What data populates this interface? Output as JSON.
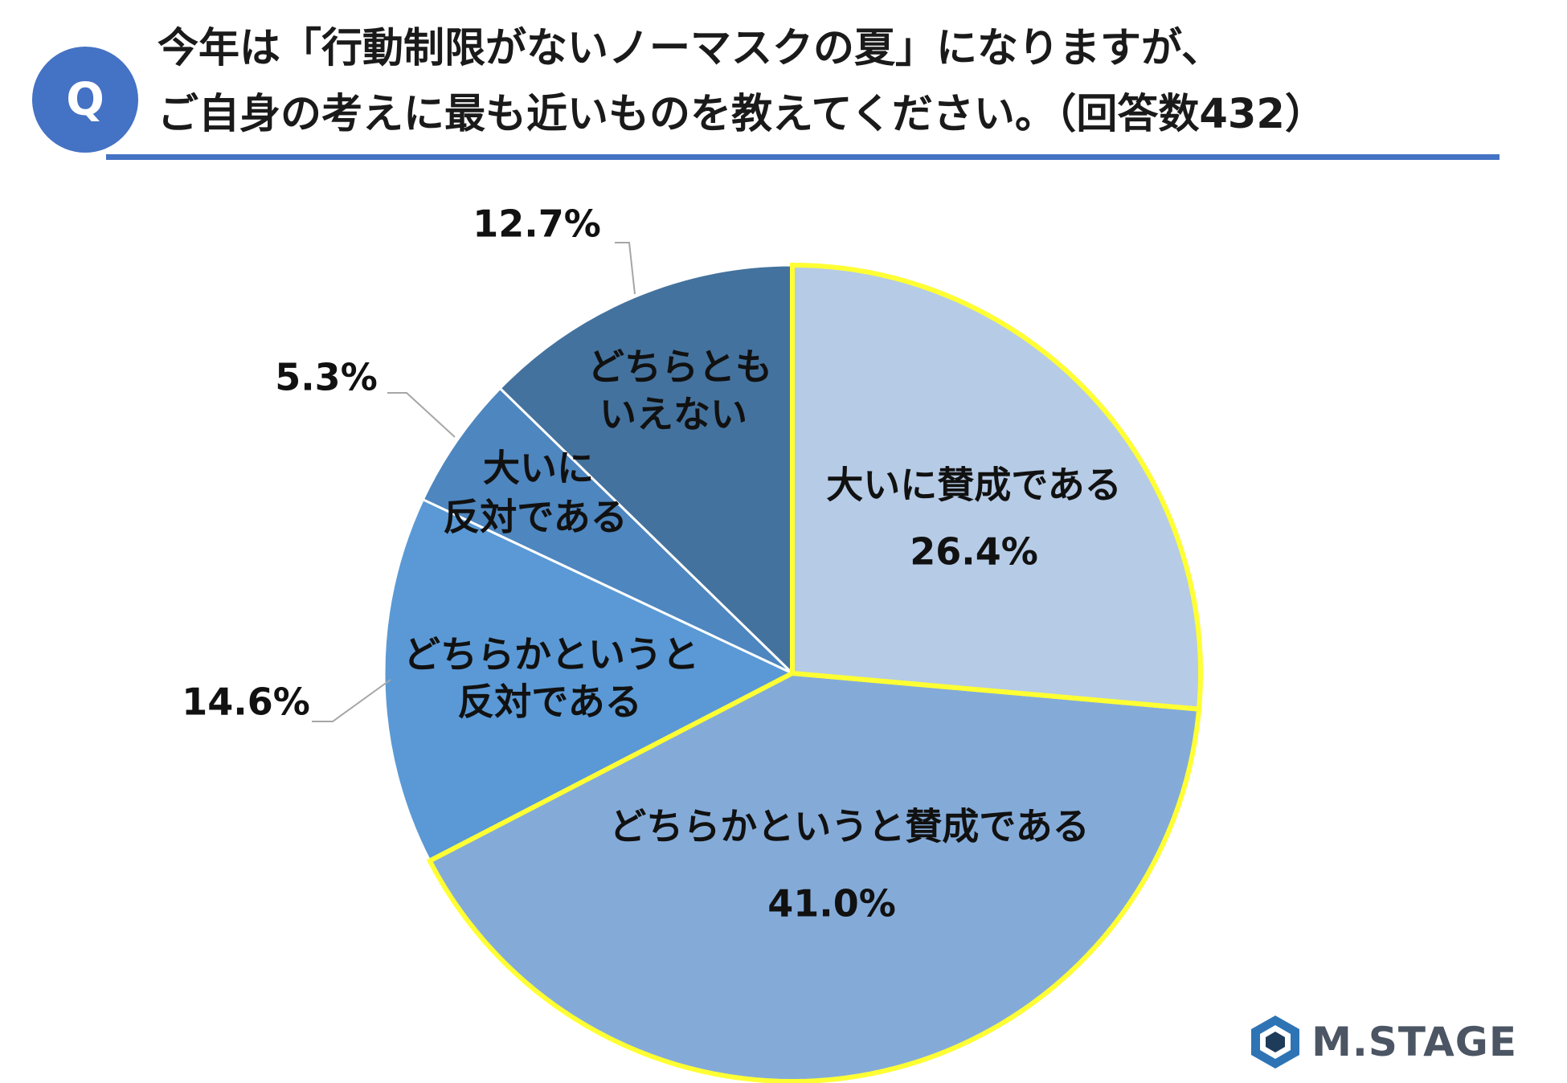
{
  "question": {
    "badge": "Q",
    "line1": "今年は「行動制限がないノーマスクの夏」になりますが、",
    "line2": "ご自身の考えに最も近いものを教えてください。（回答数432）"
  },
  "logo": {
    "icon": "hexagon-logo-icon",
    "text": "M.STAGE",
    "accent": "#2e74b5"
  },
  "colors": {
    "highlight_border": "#ffff33",
    "slice_divider": "#ffffff",
    "leader": "#a6a6a6"
  },
  "chart_data": {
    "type": "pie",
    "start": "12 o'clock",
    "direction": "clockwise",
    "slices": [
      {
        "label": "大いに賛成である",
        "lines": [
          "大いに賛成である"
        ],
        "value": 26.4,
        "pct_label": "26.4%",
        "color": "#b6cbe6",
        "highlight": true,
        "label_placement": "inside"
      },
      {
        "label": "どちらかというと賛成である",
        "lines": [
          "どちらかというと賛成である"
        ],
        "value": 41.0,
        "pct_label": "41.0%",
        "color": "#84abd8",
        "highlight": true,
        "label_placement": "inside"
      },
      {
        "label": "どちらかというと反対である",
        "lines": [
          "どちらかというと",
          "反対である"
        ],
        "value": 14.6,
        "pct_label": "14.6%",
        "color": "#5a99d5",
        "highlight": false,
        "label_placement": "outside"
      },
      {
        "label": "大いに反対である",
        "lines": [
          "大いに",
          "反対である"
        ],
        "value": 5.3,
        "pct_label": "5.3%",
        "color": "#4e86bf",
        "highlight": false,
        "label_placement": "outside"
      },
      {
        "label": "どちらともいえない",
        "lines": [
          "どちらとも",
          "いえない"
        ],
        "value": 12.7,
        "pct_label": "12.7%",
        "color": "#44729e",
        "highlight": false,
        "label_placement": "outside"
      }
    ]
  }
}
